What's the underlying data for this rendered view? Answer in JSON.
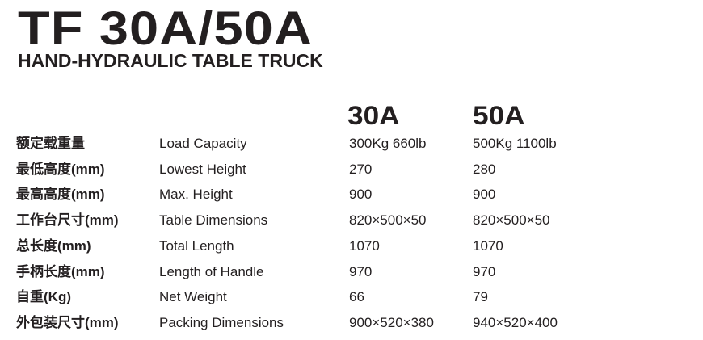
{
  "header": {
    "title": "TF 30A/50A",
    "subtitle": "HAND-HYDRAULIC TABLE TRUCK"
  },
  "table": {
    "columns": [
      "30A",
      "50A"
    ],
    "rows": [
      {
        "cn": "额定载重量",
        "en": "Load Capacity",
        "a30": "300Kg  660lb",
        "a50": "500Kg  1100lb"
      },
      {
        "cn": "最低高度(mm)",
        "en": "Lowest Height",
        "a30": "270",
        "a50": "280"
      },
      {
        "cn": "最高高度(mm)",
        "en": "Max. Height",
        "a30": "900",
        "a50": "900"
      },
      {
        "cn": "工作台尺寸(mm)",
        "en": "Table Dimensions",
        "a30": "820×500×50",
        "a50": "820×500×50"
      },
      {
        "cn": "总长度(mm)",
        "en": "Total Length",
        "a30": "1070",
        "a50": "1070"
      },
      {
        "cn": "手柄长度(mm)",
        "en": "Length of Handle",
        "a30": "970",
        "a50": "970"
      },
      {
        "cn": "自重(Kg)",
        "en": "Net Weight",
        "a30": "66",
        "a50": "79"
      },
      {
        "cn": "外包装尺寸(mm)",
        "en": "Packing Dimensions",
        "a30": "900×520×380",
        "a50": "940×520×400"
      }
    ]
  }
}
